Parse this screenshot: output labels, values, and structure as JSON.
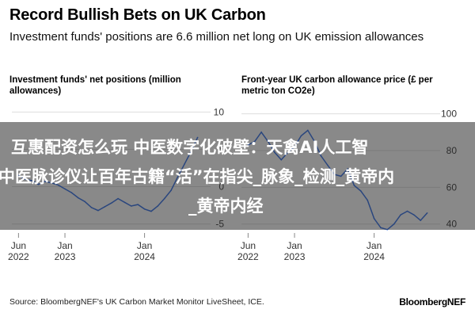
{
  "header": {
    "title": "Record Bullish Bets on UK Carbon",
    "subtitle": "Investment funds' positions are 6.6 million net long on UK emission allowances"
  },
  "footer": {
    "source": "Source: BloombergNEF's UK Carbon Market Monitor LiveSheet, ICE.",
    "logo": "BloombergNEF"
  },
  "overlay": {
    "line1": "互惠配资怎么玩 中医数字化破壁：天禽AI人工智",
    "line2": "中医脉诊仪让百年古籍“活”在指尖_脉象_检测_黄帝内",
    "line3": "_黄帝内经"
  },
  "colors": {
    "line": "#2e6ce6",
    "grid": "#dddddd",
    "overlay": "#3a3a3a"
  },
  "chart_data": [
    {
      "type": "line",
      "title": "Investment funds' net positions (million allowances)",
      "x_ticks": [
        "Jun\n2022",
        "Jan\n2023",
        "Jan\n2024"
      ],
      "y_ticks": [
        10,
        5,
        0,
        -5
      ],
      "ylim": [
        -6,
        11
      ],
      "series": [
        {
          "x": [
            "2022-06",
            "2022-07",
            "2022-08",
            "2022-09",
            "2022-10",
            "2022-11",
            "2022-12",
            "2023-01",
            "2023-02",
            "2023-03",
            "2023-04",
            "2023-05",
            "2023-06",
            "2023-07",
            "2023-08",
            "2023-09",
            "2023-10",
            "2023-11",
            "2023-12",
            "2024-01",
            "2024-02",
            "2024-03",
            "2024-04",
            "2024-05",
            "2024-06",
            "2024-07",
            "2024-08",
            "2024-09"
          ],
          "y": [
            1.5,
            1.0,
            0.8,
            0.3,
            0.7,
            0.5,
            0.2,
            -0.3,
            -0.8,
            -1.5,
            -2.0,
            -2.8,
            -3.2,
            -2.7,
            -2.2,
            -1.6,
            -2.1,
            -2.6,
            -2.4,
            -3.0,
            -3.3,
            -2.6,
            -1.6,
            -0.5,
            1.3,
            3.0,
            4.7,
            6.6
          ]
        }
      ]
    },
    {
      "type": "line",
      "title": "Front-year UK carbon allowance price (£ per metric ton CO2e)",
      "x_ticks": [
        "Jun\n2022",
        "Jan\n2023",
        "Jan\n2024"
      ],
      "y_ticks": [
        100,
        80,
        60,
        40
      ],
      "ylim": [
        36,
        105
      ],
      "series": [
        {
          "x": [
            "2022-06",
            "2022-07",
            "2022-08",
            "2022-09",
            "2022-10",
            "2022-11",
            "2022-12",
            "2023-01",
            "2023-02",
            "2023-03",
            "2023-04",
            "2023-05",
            "2023-06",
            "2023-07",
            "2023-08",
            "2023-09",
            "2023-10",
            "2023-11",
            "2023-12",
            "2024-01",
            "2024-02",
            "2024-03",
            "2024-04",
            "2024-05",
            "2024-06",
            "2024-07",
            "2024-08",
            "2024-09"
          ],
          "y": [
            83,
            85,
            90,
            85,
            79,
            75,
            79,
            82,
            88,
            91,
            85,
            77,
            72,
            67,
            66,
            70,
            61,
            58,
            53,
            43,
            38,
            37,
            40,
            45,
            47,
            45,
            42,
            46
          ]
        }
      ]
    }
  ]
}
